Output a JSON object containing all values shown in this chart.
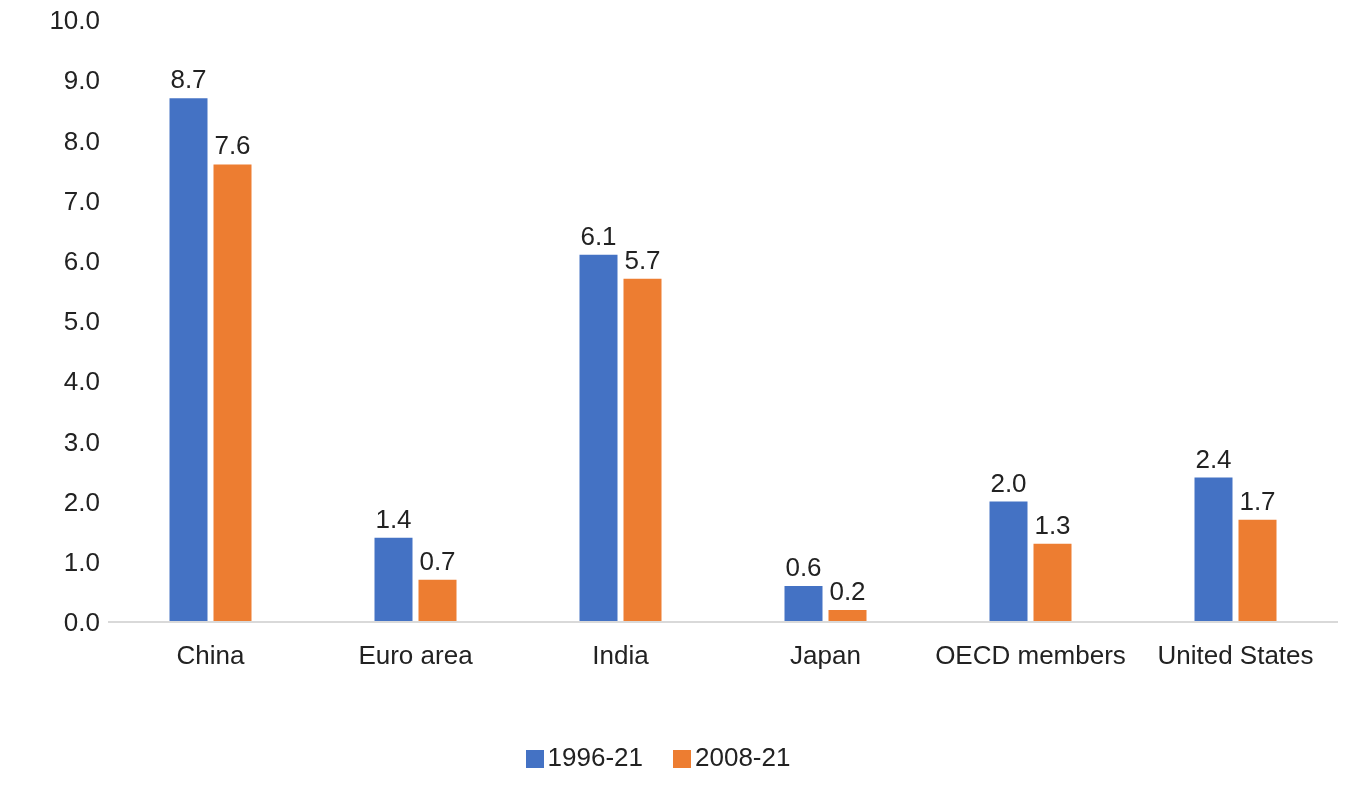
{
  "chart_data": {
    "type": "bar",
    "categories": [
      "China",
      "Euro area",
      "India",
      "Japan",
      "OECD members",
      "United States"
    ],
    "series": [
      {
        "name": "1996-21",
        "color": "#4472c4",
        "values": [
          8.7,
          1.4,
          6.1,
          0.6,
          2.0,
          2.4
        ],
        "value_labels": [
          "8.7",
          "1.4",
          "6.1",
          "0.6",
          "2.0",
          "2.4"
        ]
      },
      {
        "name": "2008-21",
        "color": "#ed7d31",
        "values": [
          7.6,
          0.7,
          5.7,
          0.2,
          1.3,
          1.7
        ],
        "value_labels": [
          "7.6",
          "0.7",
          "5.7",
          "0.2",
          "1.3",
          "1.7"
        ]
      }
    ],
    "ylim": [
      0,
      10
    ],
    "yticks": [
      {
        "value": 0,
        "label": "0.0"
      },
      {
        "value": 1,
        "label": "1.0"
      },
      {
        "value": 2,
        "label": "2.0"
      },
      {
        "value": 3,
        "label": "3.0"
      },
      {
        "value": 4,
        "label": "4.0"
      },
      {
        "value": 5,
        "label": "5.0"
      },
      {
        "value": 6,
        "label": "6.0"
      },
      {
        "value": 7,
        "label": "7.0"
      },
      {
        "value": 8,
        "label": "8.0"
      },
      {
        "value": 9,
        "label": "9.0"
      },
      {
        "value": 10,
        "label": "10.0"
      }
    ],
    "grid": false,
    "legend": "bottom"
  }
}
